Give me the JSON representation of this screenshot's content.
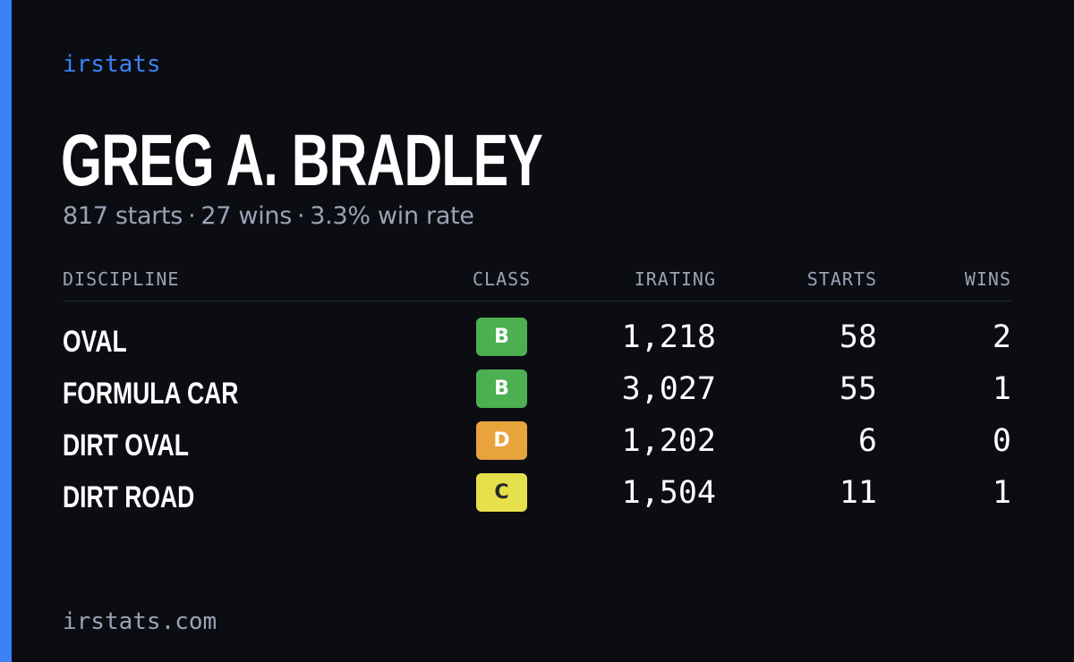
{
  "brand": "irstats",
  "driver": {
    "name": "GREG A. BRADLEY",
    "starts_text": "817 starts",
    "wins_text": "27 wins",
    "win_rate_text": "3.3% win rate",
    "separator": "·"
  },
  "table": {
    "headers": {
      "discipline": "DISCIPLINE",
      "class": "CLASS",
      "irating": "IRATING",
      "starts": "STARTS",
      "wins": "WINS"
    },
    "rows": [
      {
        "discipline": "OVAL",
        "class": "B",
        "class_color": "#4caf50",
        "class_text_color": "#ffffff",
        "irating": "1,218",
        "starts": "58",
        "wins": "2"
      },
      {
        "discipline": "FORMULA CAR",
        "class": "B",
        "class_color": "#4caf50",
        "class_text_color": "#ffffff",
        "irating": "3,027",
        "starts": "55",
        "wins": "1"
      },
      {
        "discipline": "DIRT OVAL",
        "class": "D",
        "class_color": "#e8a33d",
        "class_text_color": "#ffffff",
        "irating": "1,202",
        "starts": "6",
        "wins": "0"
      },
      {
        "discipline": "DIRT ROAD",
        "class": "C",
        "class_color": "#e6e04a",
        "class_text_color": "#2a2a2a",
        "irating": "1,504",
        "starts": "11",
        "wins": "1"
      }
    ]
  },
  "footer": {
    "url": "irstats.com"
  },
  "colors": {
    "background": "#0b0d13",
    "accent": "#3b82f6",
    "muted_text": "#9aa3b5",
    "primary_text": "#ffffff"
  }
}
